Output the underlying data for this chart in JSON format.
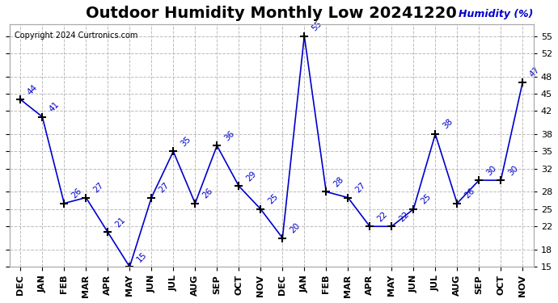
{
  "title": "Outdoor Humidity Monthly Low 20241220",
  "copyright": "Copyright 2024 Curtronics.com",
  "ylabel": "Humidity (%)",
  "months": [
    "DEC",
    "JAN",
    "FEB",
    "MAR",
    "APR",
    "MAY",
    "JUN",
    "JUL",
    "AUG",
    "SEP",
    "OCT",
    "NOV",
    "DEC",
    "JAN",
    "FEB",
    "MAR",
    "APR",
    "MAY",
    "JUN",
    "JUL",
    "AUG",
    "SEP",
    "OCT",
    "NOV"
  ],
  "values": [
    44,
    41,
    26,
    27,
    21,
    15,
    27,
    35,
    26,
    36,
    29,
    25,
    20,
    55,
    28,
    27,
    22,
    22,
    25,
    38,
    26,
    30,
    30,
    47
  ],
  "ylim_min": 15,
  "ylim_max": 57,
  "yticks": [
    15,
    18,
    22,
    25,
    28,
    32,
    35,
    38,
    42,
    45,
    48,
    52,
    55
  ],
  "line_color": "#0000cc",
  "marker_color": "#000000",
  "title_fontsize": 14,
  "label_fontsize": 9,
  "background_color": "#ffffff",
  "grid_color": "#bbbbbb"
}
